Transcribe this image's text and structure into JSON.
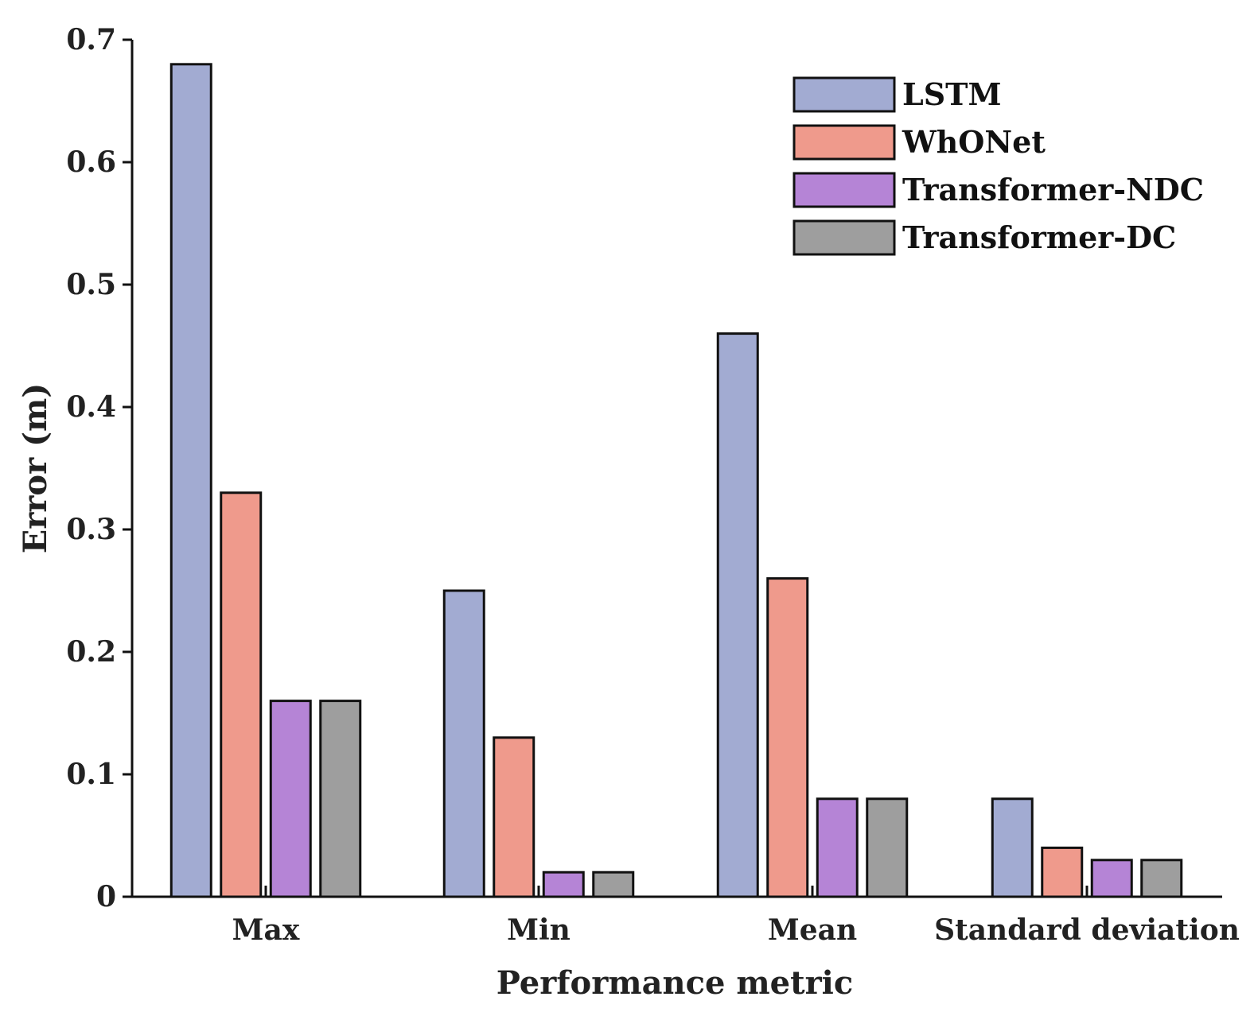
{
  "chart_data": {
    "type": "bar",
    "categories": [
      "Max",
      "Min",
      "Mean",
      "Standard deviation"
    ],
    "series": [
      {
        "name": "LSTM",
        "color": "#a2abd2",
        "values": [
          0.68,
          0.25,
          0.46,
          0.08
        ]
      },
      {
        "name": "WhONet",
        "color": "#ef9a8c",
        "values": [
          0.33,
          0.13,
          0.26,
          0.04
        ]
      },
      {
        "name": "Transformer-NDC",
        "color": "#b584d6",
        "values": [
          0.16,
          0.02,
          0.08,
          0.03
        ]
      },
      {
        "name": "Transformer-DC",
        "color": "#9e9e9e",
        "values": [
          0.16,
          0.02,
          0.08,
          0.03
        ]
      }
    ],
    "xlabel": "Performance metric",
    "ylabel": "Error (m)",
    "ylim": [
      0,
      0.7
    ],
    "yticks": [
      0,
      0.1,
      0.2,
      0.3,
      0.4,
      0.5,
      0.6,
      0.7
    ],
    "ytick_labels": [
      "0",
      "0.1",
      "0.2",
      "0.3",
      "0.4",
      "0.5",
      "0.6",
      "0.7"
    ],
    "grid": false,
    "legend_position": "top-right"
  }
}
